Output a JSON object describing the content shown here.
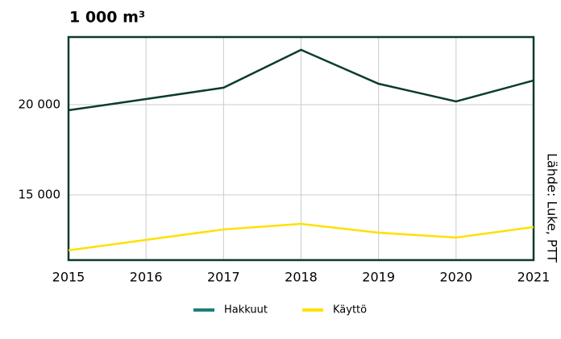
{
  "chart_data": {
    "type": "line",
    "title": "1 000 m³",
    "source": "Lähde: Luke, PTT",
    "x": [
      2015,
      2016,
      2017,
      2018,
      2019,
      2020,
      2021
    ],
    "series": [
      {
        "name": "Hakkuut",
        "color": "#0c3b2b",
        "legend_color": "#1b7f78",
        "values": [
          19690,
          20310,
          20940,
          23040,
          21160,
          20180,
          21340
        ]
      },
      {
        "name": "Käyttö",
        "color": "#ffe000",
        "legend_color": "#ffe000",
        "values": [
          11920,
          12500,
          13080,
          13390,
          12900,
          12630,
          13210
        ]
      }
    ],
    "xlim": [
      2015,
      2021
    ],
    "xticks": [
      2015,
      2016,
      2017,
      2018,
      2019,
      2020,
      2021
    ],
    "ylim": [
      11380,
      23750
    ],
    "yticks": [
      {
        "value": 15000,
        "label": "15 000"
      },
      {
        "value": 20000,
        "label": "20 000"
      }
    ],
    "grid": true,
    "legend": "bottom"
  }
}
